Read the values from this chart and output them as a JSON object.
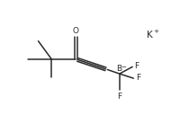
{
  "bg_color": "#ffffff",
  "line_color": "#2a2a2a",
  "line_width": 1.1,
  "font_size_label": 6.5,
  "font_size_cation": 7.5,
  "figure_size": [
    2.1,
    1.38
  ],
  "dpi": 100,
  "xlim": [
    -0.3,
    3.9
  ],
  "ylim": [
    -1.3,
    1.1
  ]
}
